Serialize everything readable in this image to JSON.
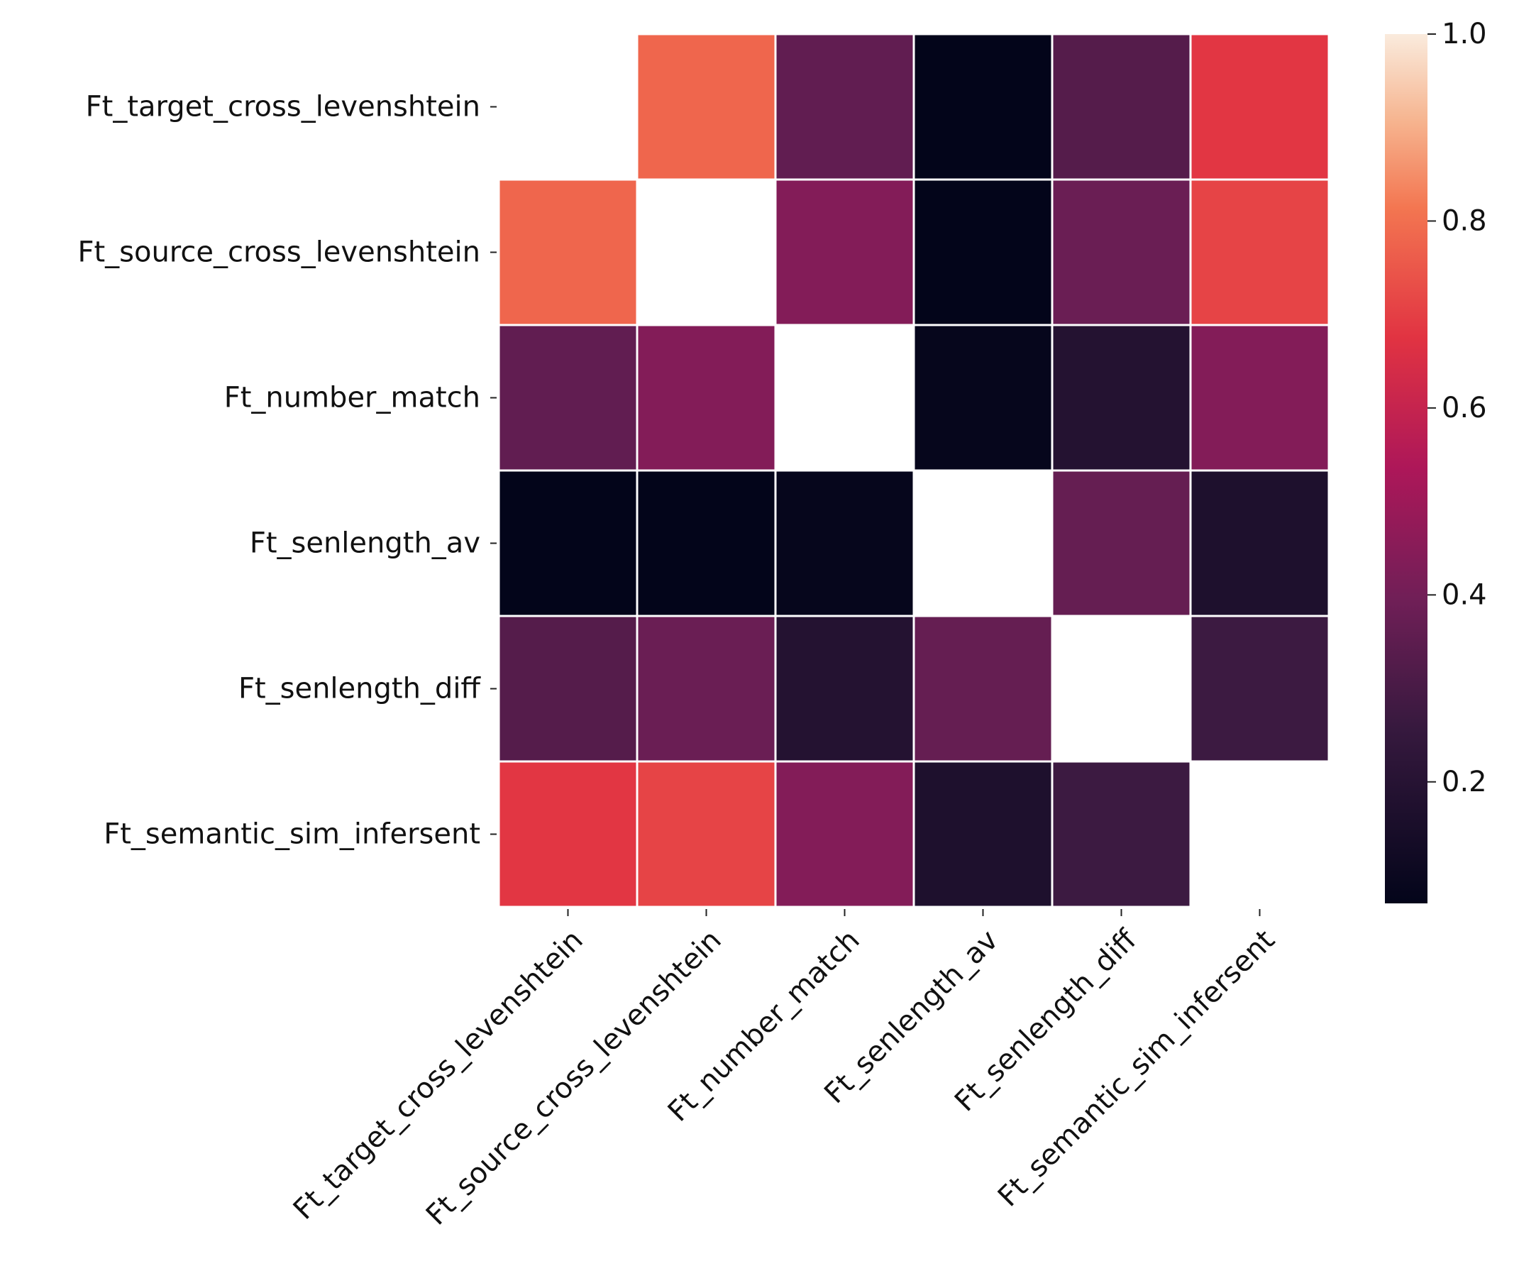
{
  "chart_data": {
    "type": "heatmap",
    "title": "",
    "xlabel": "",
    "ylabel": "",
    "row_labels": [
      "Ft_target_cross_levenshtein",
      "Ft_source_cross_levenshtein",
      "Ft_number_match",
      "Ft_senlength_av",
      "Ft_senlength_diff",
      "Ft_semantic_sim_infersent"
    ],
    "col_labels": [
      "Ft_target_cross_levenshtein",
      "Ft_source_cross_levenshtein",
      "Ft_number_match",
      "Ft_senlength_av",
      "Ft_senlength_diff",
      "Ft_semantic_sim_infersent"
    ],
    "values": [
      [
        null,
        0.78,
        0.36,
        0.07,
        0.33,
        0.68
      ],
      [
        0.78,
        null,
        0.44,
        0.07,
        0.38,
        0.71
      ],
      [
        0.36,
        0.44,
        null,
        0.08,
        0.19,
        0.44
      ],
      [
        0.07,
        0.07,
        0.08,
        null,
        0.37,
        0.17
      ],
      [
        0.33,
        0.38,
        0.19,
        0.37,
        null,
        0.27
      ],
      [
        0.68,
        0.71,
        0.44,
        0.17,
        0.27,
        null
      ]
    ],
    "colorbar": {
      "range": [
        0.07,
        1.0
      ],
      "ticks": [
        0.2,
        0.4,
        0.6,
        0.8,
        1.0
      ],
      "tick_labels": [
        "0.2",
        "0.4",
        "0.6",
        "0.8",
        "1.0"
      ],
      "colormap": "rocket",
      "colormap_stops": [
        [
          0.0,
          "#03051a"
        ],
        [
          0.2,
          "#36193e"
        ],
        [
          0.35,
          "#701f57"
        ],
        [
          0.5,
          "#ad1759"
        ],
        [
          0.65,
          "#e13342"
        ],
        [
          0.8,
          "#f37651"
        ],
        [
          0.9,
          "#f6b48f"
        ],
        [
          1.0,
          "#faebdd"
        ]
      ]
    },
    "masked_diagonal": true
  }
}
